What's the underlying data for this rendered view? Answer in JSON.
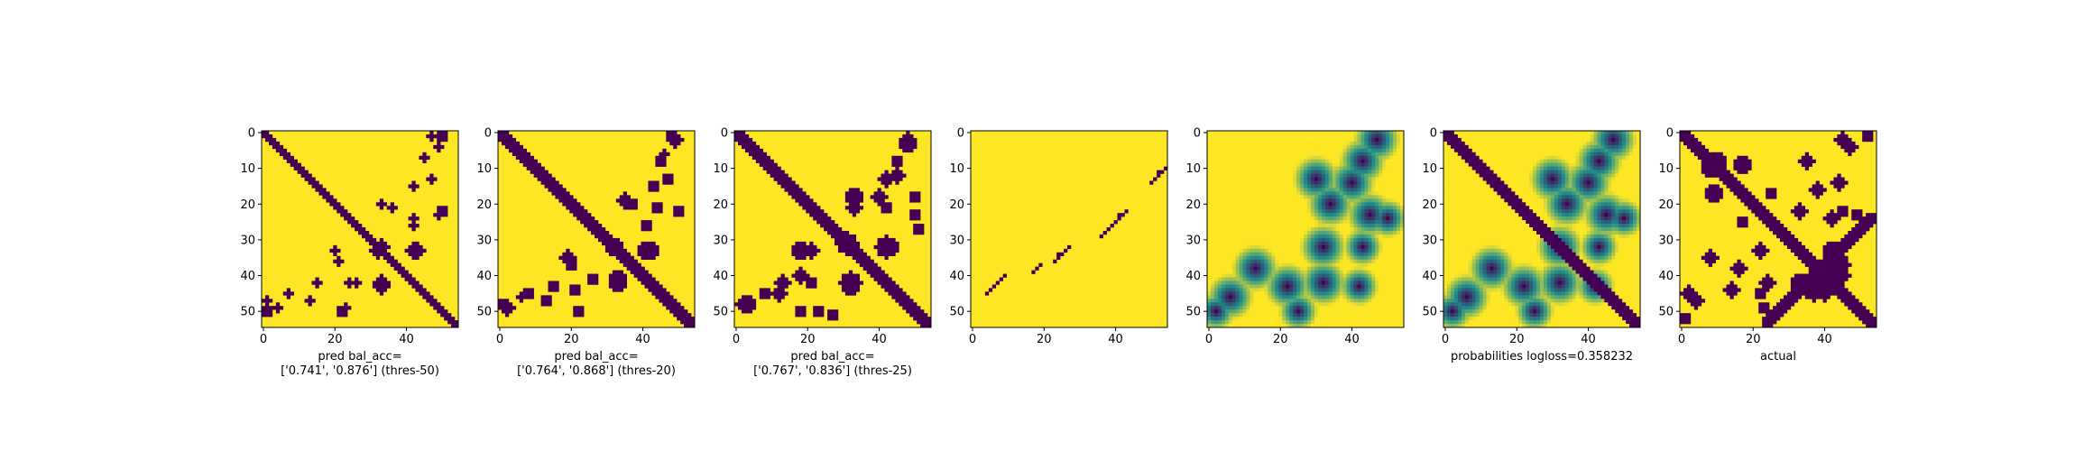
{
  "chart_data": [
    {
      "type": "heatmap",
      "colormap": "binary",
      "colors": {
        "low": "#440154",
        "high": "#fde725"
      },
      "xlabel": "pred bal_acc=\n['0.741', '0.876'] (thres-50)",
      "xticks": [
        "0",
        "20",
        "40"
      ],
      "yticks": [
        "0",
        "10",
        "20",
        "30",
        "40",
        "50"
      ],
      "xlim": [
        0,
        55
      ],
      "ylim": [
        55,
        0
      ],
      "diagonal_band_width": 1,
      "blobs": [
        {
          "r": 1,
          "c": 47,
          "rad": 1
        },
        {
          "r": 4,
          "c": 49,
          "rad": 1
        },
        {
          "r": 15,
          "c": 42,
          "rad": 1
        },
        {
          "r": 20,
          "c": 33,
          "rad": 1
        },
        {
          "r": 21,
          "c": 36,
          "rad": 1
        },
        {
          "r": 22,
          "c": 50,
          "rad": 1.5
        },
        {
          "r": 26,
          "c": 42,
          "rad": 1
        },
        {
          "r": 33,
          "c": 43,
          "rad": 2
        },
        {
          "r": 32,
          "c": 33,
          "rad": 2
        },
        {
          "r": 42,
          "c": 33,
          "rad": 2
        },
        {
          "r": 42,
          "c": 24,
          "rad": 1
        },
        {
          "r": 45,
          "c": 7,
          "rad": 1
        },
        {
          "r": 50,
          "c": 1,
          "rad": 1.5
        },
        {
          "r": 49,
          "c": 23,
          "rad": 1
        },
        {
          "r": 47,
          "c": 13,
          "rad": 1
        }
      ]
    },
    {
      "type": "heatmap",
      "colormap": "binary",
      "colors": {
        "low": "#440154",
        "high": "#fde725"
      },
      "xlabel": "pred bal_acc=\n['0.764', '0.868'] (thres-20)",
      "xticks": [
        "0",
        "20",
        "40"
      ],
      "yticks": [
        "0",
        "10",
        "20",
        "30",
        "40",
        "50"
      ],
      "xlim": [
        0,
        55
      ],
      "ylim": [
        55,
        0
      ],
      "diagonal_band_width": 2,
      "blobs": [
        {
          "r": 1,
          "c": 48,
          "rad": 1.5
        },
        {
          "r": 6,
          "c": 46,
          "rad": 1
        },
        {
          "r": 15,
          "c": 43,
          "rad": 1.5
        },
        {
          "r": 19,
          "c": 35,
          "rad": 2
        },
        {
          "r": 22,
          "c": 50,
          "rad": 1.5
        },
        {
          "r": 26,
          "c": 41,
          "rad": 1.5
        },
        {
          "r": 33,
          "c": 42,
          "rad": 2.5
        },
        {
          "r": 32,
          "c": 32,
          "rad": 2.5
        },
        {
          "r": 41,
          "c": 33,
          "rad": 2.5
        },
        {
          "r": 37,
          "c": 20,
          "rad": 1.5
        },
        {
          "r": 44,
          "c": 21,
          "rad": 1.5
        },
        {
          "r": 49,
          "c": 2,
          "rad": 2
        },
        {
          "r": 45,
          "c": 8,
          "rad": 1.5
        },
        {
          "r": 47,
          "c": 13,
          "rad": 1.5
        }
      ]
    },
    {
      "type": "heatmap",
      "colormap": "binary",
      "colors": {
        "low": "#440154",
        "high": "#fde725"
      },
      "xlabel": "pred bal_acc=\n['0.767', '0.836'] (thres-25)",
      "xticks": [
        "0",
        "20",
        "40"
      ],
      "yticks": [
        "0",
        "10",
        "20",
        "30",
        "40",
        "50"
      ],
      "xlim": [
        0,
        55
      ],
      "ylim": [
        55,
        0
      ],
      "diagonal_band_width": 2,
      "blobs": [
        {
          "r": 2,
          "c": 48,
          "rad": 2
        },
        {
          "r": 8,
          "c": 45,
          "rad": 1.5
        },
        {
          "r": 13,
          "c": 42,
          "rad": 2
        },
        {
          "r": 18,
          "c": 33,
          "rad": 2.5
        },
        {
          "r": 21,
          "c": 42,
          "rad": 1.5
        },
        {
          "r": 23,
          "c": 50,
          "rad": 1.5
        },
        {
          "r": 32,
          "c": 43,
          "rad": 2.5
        },
        {
          "r": 31,
          "c": 31,
          "rad": 3
        },
        {
          "r": 33,
          "c": 21,
          "rad": 2
        },
        {
          "r": 40,
          "c": 18,
          "rad": 2
        },
        {
          "r": 42,
          "c": 32,
          "rad": 3
        },
        {
          "r": 45,
          "c": 12,
          "rad": 2
        },
        {
          "r": 48,
          "c": 3,
          "rad": 2.5
        },
        {
          "r": 50,
          "c": 18,
          "rad": 1.5
        },
        {
          "r": 51,
          "c": 27,
          "rad": 1.5
        }
      ]
    },
    {
      "type": "heatmap",
      "colormap": "binary",
      "colors": {
        "low": "#440154",
        "high": "#fde725"
      },
      "xlabel": "",
      "xticks": [
        "0",
        "20",
        "40"
      ],
      "yticks": [
        "0",
        "10",
        "20",
        "30",
        "40",
        "50"
      ],
      "xlim": [
        0,
        55
      ],
      "ylim": [
        55,
        0
      ],
      "diagonal_band_width": 0,
      "dots": [
        [
          10,
          54
        ],
        [
          11,
          53
        ],
        [
          12,
          52
        ],
        [
          13,
          51
        ],
        [
          14,
          50
        ],
        [
          22,
          43
        ],
        [
          23,
          42
        ],
        [
          24,
          41
        ],
        [
          25,
          40
        ],
        [
          26,
          39
        ],
        [
          27,
          38
        ],
        [
          28,
          37
        ],
        [
          29,
          36
        ],
        [
          32,
          27
        ],
        [
          33,
          26
        ],
        [
          34,
          25
        ],
        [
          35,
          24
        ],
        [
          36,
          23
        ],
        [
          37,
          19
        ],
        [
          38,
          18
        ],
        [
          39,
          17
        ],
        [
          40,
          9
        ],
        [
          41,
          8
        ],
        [
          42,
          7
        ],
        [
          43,
          6
        ],
        [
          44,
          5
        ],
        [
          45,
          4
        ],
        [
          11,
          52
        ],
        [
          23,
          41
        ],
        [
          34,
          24
        ]
      ]
    },
    {
      "type": "heatmap",
      "colormap": "viridis",
      "colors": {
        "low": "#440154",
        "mid": "#21918c",
        "high": "#fde725"
      },
      "xlabel": "",
      "xticks": [
        "0",
        "20",
        "40"
      ],
      "yticks": [
        "0",
        "10",
        "20",
        "30",
        "40",
        "50"
      ],
      "xlim": [
        0,
        55
      ],
      "ylim": [
        55,
        0
      ],
      "diagonal_band_width": 0,
      "soft": true,
      "blobs": [
        {
          "r": 2,
          "c": 47,
          "rad": 3
        },
        {
          "r": 8,
          "c": 43,
          "rad": 3
        },
        {
          "r": 14,
          "c": 40,
          "rad": 3
        },
        {
          "r": 20,
          "c": 34,
          "rad": 3
        },
        {
          "r": 23,
          "c": 45,
          "rad": 3
        },
        {
          "r": 24,
          "c": 50,
          "rad": 2.5
        },
        {
          "r": 32,
          "c": 43,
          "rad": 2.5
        },
        {
          "r": 32,
          "c": 32,
          "rad": 3
        },
        {
          "r": 42,
          "c": 32,
          "rad": 3
        },
        {
          "r": 43,
          "c": 22,
          "rad": 3
        },
        {
          "r": 50,
          "c": 25,
          "rad": 2.5
        },
        {
          "r": 46,
          "c": 6,
          "rad": 3
        },
        {
          "r": 50,
          "c": 2,
          "rad": 2.5
        },
        {
          "r": 43,
          "c": 42,
          "rad": 2.5
        },
        {
          "r": 13,
          "c": 30,
          "rad": 3
        },
        {
          "r": 38,
          "c": 13,
          "rad": 3
        }
      ]
    },
    {
      "type": "heatmap",
      "colormap": "viridis",
      "colors": {
        "low": "#440154",
        "mid": "#21918c",
        "high": "#fde725"
      },
      "xlabel": "probabilities logloss=0.358232",
      "xticks": [
        "0",
        "20",
        "40"
      ],
      "yticks": [
        "0",
        "10",
        "20",
        "30",
        "40",
        "50"
      ],
      "xlim": [
        0,
        55
      ],
      "ylim": [
        55,
        0
      ],
      "diagonal_band_width": 2,
      "soft": true,
      "blobs": [
        {
          "r": 2,
          "c": 47,
          "rad": 3
        },
        {
          "r": 8,
          "c": 43,
          "rad": 3
        },
        {
          "r": 14,
          "c": 40,
          "rad": 3
        },
        {
          "r": 20,
          "c": 34,
          "rad": 3
        },
        {
          "r": 23,
          "c": 45,
          "rad": 3
        },
        {
          "r": 24,
          "c": 50,
          "rad": 2.5
        },
        {
          "r": 32,
          "c": 43,
          "rad": 2.5
        },
        {
          "r": 32,
          "c": 32,
          "rad": 3
        },
        {
          "r": 42,
          "c": 32,
          "rad": 3
        },
        {
          "r": 43,
          "c": 22,
          "rad": 3
        },
        {
          "r": 50,
          "c": 25,
          "rad": 2.5
        },
        {
          "r": 46,
          "c": 6,
          "rad": 3
        },
        {
          "r": 50,
          "c": 2,
          "rad": 2.5
        },
        {
          "r": 43,
          "c": 42,
          "rad": 2.5
        },
        {
          "r": 13,
          "c": 30,
          "rad": 3
        },
        {
          "r": 38,
          "c": 13,
          "rad": 3
        }
      ]
    },
    {
      "type": "heatmap",
      "colormap": "binary",
      "colors": {
        "low": "#440154",
        "high": "#fde725"
      },
      "xlabel": "actual",
      "xticks": [
        "0",
        "20",
        "40"
      ],
      "yticks": [
        "0",
        "10",
        "20",
        "30",
        "40",
        "50"
      ],
      "xlim": [
        0,
        55
      ],
      "ylim": [
        55,
        0
      ],
      "diagonal_band_width": 2,
      "blobs": [
        {
          "r": 2,
          "c": 45,
          "rad": 2
        },
        {
          "r": 9,
          "c": 17,
          "rad": 2.5
        },
        {
          "r": 10,
          "c": 8,
          "rad": 2.5
        },
        {
          "r": 8,
          "c": 35,
          "rad": 2
        },
        {
          "r": 14,
          "c": 44,
          "rad": 2
        },
        {
          "r": 17,
          "c": 25,
          "rad": 1.5
        },
        {
          "r": 22,
          "c": 33,
          "rad": 2
        },
        {
          "r": 22,
          "c": 45,
          "rad": 1.5
        },
        {
          "r": 33,
          "c": 42,
          "rad": 2.5
        },
        {
          "r": 37,
          "c": 44,
          "rad": 3
        },
        {
          "r": 38,
          "c": 16,
          "rad": 2
        },
        {
          "r": 42,
          "c": 24,
          "rad": 2
        },
        {
          "r": 42,
          "c": 35,
          "rad": 2
        },
        {
          "r": 47,
          "c": 4,
          "rad": 2
        },
        {
          "r": 44,
          "c": 44,
          "rad": 2
        },
        {
          "r": 49,
          "c": 23,
          "rad": 1.5
        },
        {
          "r": 52,
          "c": 1,
          "rad": 1.5
        },
        {
          "r": 40,
          "c": 45,
          "rad": 2
        }
      ],
      "anti_diagonal": {
        "from": [
          24,
          53
        ],
        "to": [
          53,
          24
        ]
      }
    }
  ]
}
